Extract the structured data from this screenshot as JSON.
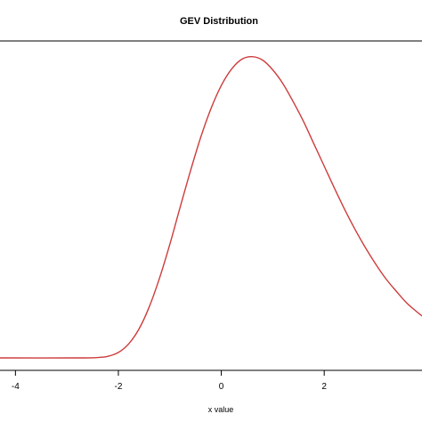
{
  "chart_data": {
    "type": "line",
    "title": "GEV Distribution",
    "xlabel": "x value",
    "ylabel": "",
    "xlim": [
      -4.3,
      3.9
    ],
    "ylim": [
      0,
      0.37
    ],
    "grid": false,
    "x_ticks": [
      {
        "value": -4,
        "label": "-4"
      },
      {
        "value": -2,
        "label": "-2"
      },
      {
        "value": 0,
        "label": "0"
      },
      {
        "value": 2,
        "label": "2"
      }
    ],
    "series": [
      {
        "color": "#cd3c3c",
        "points": [
          [
            -4.3,
            0.0
          ],
          [
            -2.8,
            0.0
          ],
          [
            -2.4,
            0.0005
          ],
          [
            -2.2,
            0.002
          ],
          [
            -2.0,
            0.0066
          ],
          [
            -1.8,
            0.017
          ],
          [
            -1.6,
            0.035
          ],
          [
            -1.4,
            0.062
          ],
          [
            -1.2,
            0.097
          ],
          [
            -1.0,
            0.138
          ],
          [
            -0.8,
            0.183
          ],
          [
            -0.6,
            0.227
          ],
          [
            -0.4,
            0.268
          ],
          [
            -0.2,
            0.303
          ],
          [
            0.0,
            0.331
          ],
          [
            0.2,
            0.351
          ],
          [
            0.4,
            0.363
          ],
          [
            0.6,
            0.366
          ],
          [
            0.8,
            0.362
          ],
          [
            1.0,
            0.35
          ],
          [
            1.2,
            0.333
          ],
          [
            1.4,
            0.311
          ],
          [
            1.6,
            0.287
          ],
          [
            1.8,
            0.26
          ],
          [
            2.0,
            0.233
          ],
          [
            2.2,
            0.206
          ],
          [
            2.4,
            0.18
          ],
          [
            2.6,
            0.156
          ],
          [
            2.8,
            0.134
          ],
          [
            3.0,
            0.114
          ],
          [
            3.2,
            0.096
          ],
          [
            3.4,
            0.081
          ],
          [
            3.6,
            0.067
          ],
          [
            3.8,
            0.056
          ],
          [
            3.9,
            0.051
          ]
        ]
      }
    ]
  }
}
